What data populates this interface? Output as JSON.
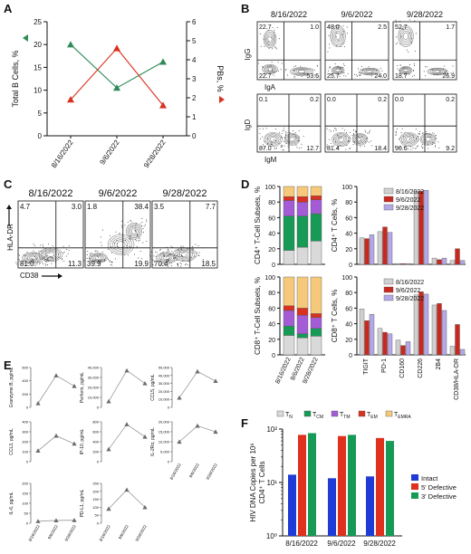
{
  "panels": {
    "A": "A",
    "B": "B",
    "C": "C",
    "D": "D",
    "E": "E",
    "F": "F"
  },
  "dates": [
    "8/16/2022",
    "9/6/2022",
    "9/28/2022"
  ],
  "colors": {
    "green": "#2e8b57",
    "red": "#d93020",
    "gray": "#cccccc",
    "darkred": "#c8281e",
    "lavender": "#b4a8e6",
    "blue": "#1f3bd6"
  },
  "panelA": {
    "type": "line",
    "ylabel_left": "Total B Cells, %",
    "ylabel_right": "PBs, %",
    "left_ticks": [
      "0",
      "5",
      "10",
      "15",
      "20",
      "25"
    ],
    "right_ticks": [
      "0",
      "1",
      "2",
      "3",
      "4",
      "5",
      "6"
    ],
    "ylim_left": [
      0,
      25
    ],
    "ylim_right": [
      0,
      6
    ],
    "series": [
      {
        "axis": "left",
        "color": "#2e8b57",
        "values": [
          20,
          10.5,
          16.2
        ]
      },
      {
        "axis": "right",
        "color": "#d93020",
        "values": [
          1.9,
          4.6,
          1.6
        ]
      }
    ]
  },
  "panelB": {
    "top": {
      "ylabel": "IgG",
      "xlabel": "IgA",
      "plots": [
        {
          "date": "8/16/2022",
          "ul": "22.7",
          "ur": "1.0",
          "ll": "22.7",
          "lr": "53.6"
        },
        {
          "date": "9/6/2022",
          "ul": "48.0",
          "ur": "2.5",
          "ll": "25.7",
          "lr": "24.0"
        },
        {
          "date": "9/28/2022",
          "ul": "52.7",
          "ur": "1.7",
          "ll": "18.7",
          "lr": "26.9"
        }
      ]
    },
    "bottom": {
      "ylabel": "IgD",
      "xlabel": "IgM",
      "plots": [
        {
          "ul": "0.1",
          "ur": "0.2",
          "ll": "87.0",
          "lr": "12.7"
        },
        {
          "ul": "0.0",
          "ur": "0.2",
          "ll": "81.4",
          "lr": "18.4"
        },
        {
          "ul": "0.0",
          "ur": "0.2",
          "ll": "90.6",
          "lr": "9.2"
        }
      ]
    }
  },
  "panelC": {
    "ylabel": "HLA-DR",
    "xlabel": "CD38",
    "plots": [
      {
        "date": "8/16/2022",
        "ul": "4.7",
        "ur": "3.0",
        "ll": "81.0",
        "lr": "11.3"
      },
      {
        "date": "9/6/2022",
        "ul": "1.8",
        "ur": "38.4",
        "ll": "39.9",
        "lr": "19.9"
      },
      {
        "date": "9/28/2022",
        "ul": "3.5",
        "ur": "7.7",
        "ll": "70.4",
        "lr": "18.5"
      }
    ]
  },
  "panelD": {
    "stack_ylabel_top": "CD4⁺ T-Cell Subsets, %",
    "stack_ylabel_bottom": "CD8⁺ T-Cell Subsets, %",
    "bar_ylabel_top": "CD4⁺ T Cells, %",
    "bar_ylabel_bottom": "CD8⁺ T Cells, %",
    "percent_ticks": [
      "0",
      "20",
      "40",
      "60",
      "80",
      "100"
    ],
    "markers": [
      "TIGIT",
      "PD-1",
      "CD160",
      "CD226",
      "2B4",
      "CD38/HLA-DR"
    ],
    "subsets": [
      {
        "name": "T",
        "sub": "N",
        "color": "#d9d9d9"
      },
      {
        "name": "T",
        "sub": "CM",
        "color": "#169a55"
      },
      {
        "name": "T",
        "sub": "TM",
        "color": "#a35bd6"
      },
      {
        "name": "T",
        "sub": "EM",
        "color": "#d93020"
      },
      {
        "name": "T",
        "sub": "EMRA",
        "color": "#f6c97a"
      }
    ],
    "stack_cd4": [
      [
        18,
        44,
        20,
        5,
        13
      ],
      [
        22,
        40,
        18,
        7,
        13
      ],
      [
        30,
        35,
        18,
        5,
        12
      ]
    ],
    "stack_cd8": [
      [
        25,
        12,
        20,
        6,
        37
      ],
      [
        22,
        5,
        24,
        9,
        40
      ],
      [
        24,
        10,
        14,
        5,
        47
      ]
    ],
    "cd4_bars": [
      [
        34,
        33,
        38
      ],
      [
        42,
        48,
        41
      ],
      [
        1,
        1,
        1
      ],
      [
        94,
        94,
        95
      ],
      [
        8,
        6,
        8
      ],
      [
        5,
        20,
        5
      ]
    ],
    "cd8_bars": [
      [
        59,
        44,
        52
      ],
      [
        34,
        29,
        27
      ],
      [
        19,
        12,
        17
      ],
      [
        77,
        81,
        78
      ],
      [
        64,
        66,
        57
      ],
      [
        11,
        39,
        7
      ]
    ]
  },
  "panelE": {
    "ylabels": [
      "Granzyme B, pg/mL",
      "Perforin, pg/mL",
      "CCL5, pg/mL",
      "CCL3, pg/mL",
      "IP-10, pg/mL",
      "IL-2Rα, pg/mL",
      "IL-6, pg/mL",
      "PD-L1, pg/mL"
    ],
    "ticks": [
      [
        "0",
        "200",
        "400",
        "600"
      ],
      [
        "0",
        "10,000",
        "20,000",
        "30,000",
        "40,000"
      ],
      [
        "0",
        "10,000",
        "20,000",
        "30,000",
        "40,000",
        "50,000"
      ],
      [
        "0",
        "100",
        "200",
        "300",
        "400"
      ],
      [
        "0",
        "200",
        "400",
        "600",
        "800"
      ],
      [
        "0",
        "5,000",
        "10,000",
        "15,000",
        "20,000"
      ],
      [
        "0",
        "50",
        "100",
        "150",
        "200"
      ],
      [
        "0",
        "50",
        "100",
        "150",
        "200",
        "250"
      ]
    ],
    "values": [
      [
        60,
        480,
        320
      ],
      [
        6000,
        37000,
        24000
      ],
      [
        12000,
        45000,
        33000
      ],
      [
        110,
        260,
        180
      ],
      [
        250,
        750,
        500
      ],
      [
        10000,
        18000,
        15000
      ],
      [
        10,
        14,
        15
      ],
      [
        90,
        210,
        100
      ]
    ]
  },
  "panelF": {
    "ylabel_line1": "HIV DNA Copies per 10⁶",
    "ylabel_line2": "CD4⁺ T Cells",
    "yticks": [
      "10⁰",
      "10¹",
      "10²"
    ],
    "legend": [
      "Intact",
      "5' Defective",
      "3' Defective"
    ],
    "series": [
      {
        "name": "Intact",
        "values": [
          14,
          12,
          13
        ]
      },
      {
        "name": "5' Defective",
        "values": [
          78,
          74,
          68
        ]
      },
      {
        "name": "3' Defective",
        "values": [
          84,
          78,
          60
        ]
      }
    ]
  }
}
